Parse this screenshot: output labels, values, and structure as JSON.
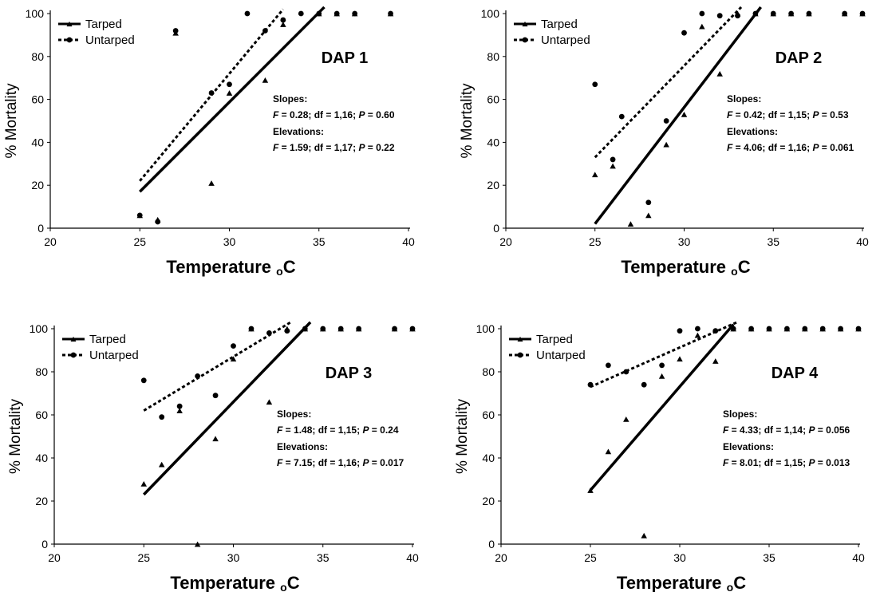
{
  "chart_data": [
    {
      "type": "scatter",
      "panel_label": "DAP 1",
      "xlabel": "Temperature",
      "xlabel_sub": "o",
      "xlabel_unit": "C",
      "ylabel": "% Mortality",
      "xlim": [
        20,
        40
      ],
      "ylim": [
        0,
        100
      ],
      "xticks": [
        20,
        25,
        30,
        35,
        40
      ],
      "yticks": [
        0,
        20,
        40,
        60,
        80,
        100
      ],
      "legend": [
        "Tarped",
        "Untarped"
      ],
      "stats": [
        {
          "head": "Slopes:",
          "F": "0.28",
          "df": "1,16",
          "P": "0.60"
        },
        {
          "head": "Elevations:",
          "F": "1.59",
          "df": "1,17",
          "P": "0.22"
        }
      ],
      "series": [
        {
          "name": "Tarped",
          "marker": "triangle",
          "points": [
            [
              25,
              6
            ],
            [
              26,
              4
            ],
            [
              27,
              91
            ],
            [
              29,
              21
            ],
            [
              30,
              63
            ],
            [
              32,
              69
            ],
            [
              33,
              95
            ],
            [
              35,
              100
            ],
            [
              36,
              100
            ],
            [
              37,
              100
            ],
            [
              39,
              100
            ]
          ],
          "fit": [
            [
              25,
              17
            ],
            [
              35.3,
              103
            ]
          ]
        },
        {
          "name": "Untarped",
          "marker": "circle",
          "points": [
            [
              25,
              6
            ],
            [
              26,
              3
            ],
            [
              27,
              92
            ],
            [
              29,
              63
            ],
            [
              30,
              67
            ],
            [
              31,
              100
            ],
            [
              32,
              92
            ],
            [
              33,
              97
            ],
            [
              34,
              100
            ],
            [
              35,
              100
            ],
            [
              36,
              100
            ],
            [
              37,
              100
            ],
            [
              39,
              100
            ]
          ],
          "fit": [
            [
              25,
              22
            ],
            [
              33,
              102
            ]
          ]
        }
      ]
    },
    {
      "type": "scatter",
      "panel_label": "DAP 2",
      "xlabel": "Temperature",
      "xlabel_sub": "o",
      "xlabel_unit": "C",
      "ylabel": "% Mortality",
      "xlim": [
        20,
        40
      ],
      "ylim": [
        0,
        100
      ],
      "xticks": [
        20,
        25,
        30,
        35,
        40
      ],
      "yticks": [
        0,
        20,
        40,
        60,
        80,
        100
      ],
      "legend": [
        "Tarped",
        "Untarped"
      ],
      "stats": [
        {
          "head": "Slopes:",
          "F": "0.42",
          "df": "1,15",
          "P": "0.53"
        },
        {
          "head": "Elevations:",
          "F": "4.06",
          "df": "1,16",
          "P": "0.061"
        }
      ],
      "series": [
        {
          "name": "Tarped",
          "marker": "triangle",
          "points": [
            [
              25,
              25
            ],
            [
              26,
              29
            ],
            [
              27,
              2
            ],
            [
              28,
              6
            ],
            [
              29,
              39
            ],
            [
              30,
              53
            ],
            [
              31,
              94
            ],
            [
              32,
              72
            ],
            [
              33,
              100
            ],
            [
              34,
              100
            ],
            [
              35,
              100
            ],
            [
              36,
              100
            ],
            [
              37,
              100
            ],
            [
              39,
              100
            ],
            [
              40,
              100
            ]
          ],
          "fit": [
            [
              25,
              2
            ],
            [
              34.3,
              103
            ]
          ]
        },
        {
          "name": "Untarped",
          "marker": "circle",
          "points": [
            [
              25,
              67
            ],
            [
              26,
              32
            ],
            [
              26.5,
              52
            ],
            [
              28,
              12
            ],
            [
              29,
              50
            ],
            [
              30,
              91
            ],
            [
              31,
              100
            ],
            [
              32,
              99
            ],
            [
              33,
              99
            ],
            [
              34,
              100
            ],
            [
              35,
              100
            ],
            [
              36,
              100
            ],
            [
              37,
              100
            ],
            [
              39,
              100
            ],
            [
              40,
              100
            ]
          ],
          "fit": [
            [
              25,
              33
            ],
            [
              33.2,
              103
            ]
          ]
        }
      ]
    },
    {
      "type": "scatter",
      "panel_label": "DAP 3",
      "xlabel": "Temperature",
      "xlabel_sub": "o",
      "xlabel_unit": "C",
      "ylabel": "% Mortality",
      "xlim": [
        20,
        40
      ],
      "ylim": [
        0,
        100
      ],
      "xticks": [
        20,
        25,
        30,
        35,
        40
      ],
      "yticks": [
        0,
        20,
        40,
        60,
        80,
        100
      ],
      "legend": [
        "Tarped",
        "Untarped"
      ],
      "stats": [
        {
          "head": "Slopes:",
          "F": "1.48",
          "df": "1,15",
          "P": "0.24"
        },
        {
          "head": "Elevations:",
          "F": "7.15",
          "df": "1,16",
          "P": "0.017"
        }
      ],
      "series": [
        {
          "name": "Tarped",
          "marker": "triangle",
          "points": [
            [
              25,
              28
            ],
            [
              26,
              37
            ],
            [
              27,
              62
            ],
            [
              28,
              0
            ],
            [
              29,
              49
            ],
            [
              30,
              86
            ],
            [
              31,
              100
            ],
            [
              32,
              66
            ],
            [
              33,
              100
            ],
            [
              34,
              100
            ],
            [
              35,
              100
            ],
            [
              36,
              100
            ],
            [
              37,
              100
            ],
            [
              39,
              100
            ],
            [
              40,
              100
            ]
          ],
          "fit": [
            [
              25,
              23
            ],
            [
              34.3,
              103
            ]
          ]
        },
        {
          "name": "Untarped",
          "marker": "circle",
          "points": [
            [
              25,
              76
            ],
            [
              26,
              59
            ],
            [
              27,
              64
            ],
            [
              28,
              78
            ],
            [
              29,
              69
            ],
            [
              30,
              92
            ],
            [
              31,
              100
            ],
            [
              32,
              98
            ],
            [
              33,
              99
            ],
            [
              34,
              100
            ],
            [
              35,
              100
            ],
            [
              36,
              100
            ],
            [
              37,
              100
            ],
            [
              39,
              100
            ],
            [
              40,
              100
            ]
          ],
          "fit": [
            [
              25,
              62
            ],
            [
              33.2,
              103
            ]
          ]
        }
      ]
    },
    {
      "type": "scatter",
      "panel_label": "DAP 4",
      "xlabel": "Temperature",
      "xlabel_sub": "o",
      "xlabel_unit": "C",
      "ylabel": "% Mortality",
      "xlim": [
        20,
        40
      ],
      "ylim": [
        0,
        100
      ],
      "xticks": [
        20,
        25,
        30,
        35,
        40
      ],
      "yticks": [
        0,
        20,
        40,
        60,
        80,
        100
      ],
      "legend": [
        "Tarped",
        "Untarped"
      ],
      "stats": [
        {
          "head": "Slopes:",
          "F": "4.33",
          "df": "1,14",
          "P": "0.056"
        },
        {
          "head": "Elevations:",
          "F": "8.01",
          "df": "1,15",
          "P": "0.013"
        }
      ],
      "series": [
        {
          "name": "Tarped",
          "marker": "triangle",
          "points": [
            [
              25,
              25
            ],
            [
              26,
              43
            ],
            [
              27,
              58
            ],
            [
              28,
              4
            ],
            [
              29,
              78
            ],
            [
              30,
              86
            ],
            [
              31,
              97
            ],
            [
              32,
              85
            ],
            [
              33,
              100
            ],
            [
              34,
              100
            ],
            [
              35,
              100
            ],
            [
              36,
              100
            ],
            [
              37,
              100
            ],
            [
              38,
              100
            ],
            [
              39,
              100
            ],
            [
              40,
              100
            ]
          ],
          "fit": [
            [
              25,
              25
            ],
            [
              33,
              102
            ]
          ]
        },
        {
          "name": "Untarped",
          "marker": "circle",
          "points": [
            [
              25,
              74
            ],
            [
              26,
              83
            ],
            [
              27,
              80
            ],
            [
              28,
              74
            ],
            [
              29,
              83
            ],
            [
              30,
              99
            ],
            [
              31,
              100
            ],
            [
              32,
              99
            ],
            [
              33,
              100
            ],
            [
              34,
              100
            ],
            [
              35,
              100
            ],
            [
              36,
              100
            ],
            [
              37,
              100
            ],
            [
              38,
              100
            ],
            [
              39,
              100
            ],
            [
              40,
              100
            ]
          ],
          "fit": [
            [
              25,
              73
            ],
            [
              33.2,
              103
            ]
          ]
        }
      ]
    }
  ]
}
